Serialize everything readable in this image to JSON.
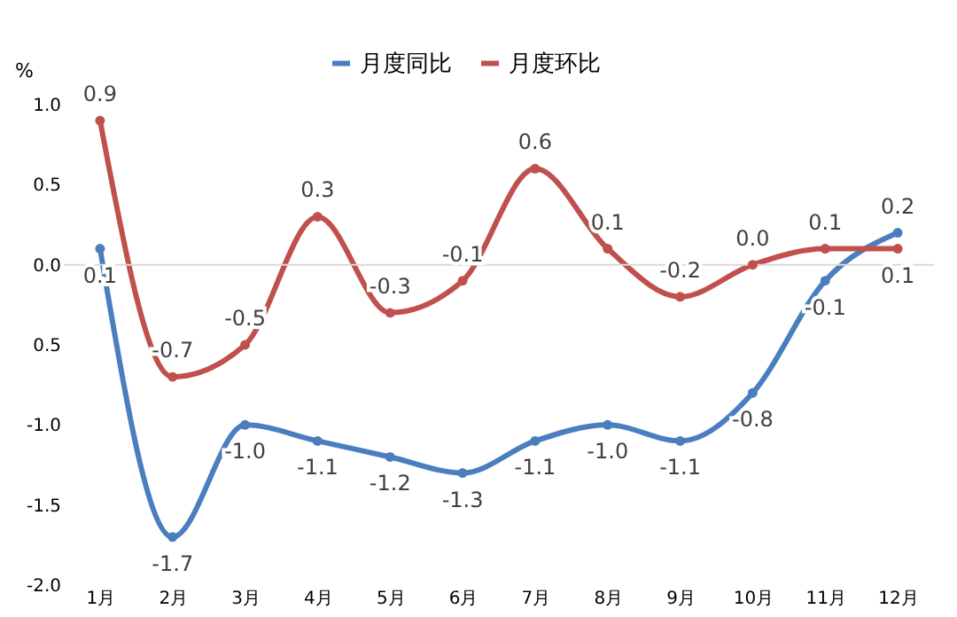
{
  "chart_data": {
    "type": "line",
    "ylabel": "%",
    "categories": [
      "1月",
      "2月",
      "3月",
      "4月",
      "5月",
      "6月",
      "7月",
      "8月",
      "9月",
      "10月",
      "11月",
      "12月"
    ],
    "series": [
      {
        "name": "月度同比",
        "color": "#4a7ebf",
        "values": [
          0.1,
          -1.7,
          -1.0,
          -1.1,
          -1.2,
          -1.3,
          -1.1,
          -1.0,
          -1.1,
          -0.8,
          -0.1,
          0.2
        ],
        "value_labels": [
          "0.1",
          "-1.7",
          "-1.0",
          "-1.1",
          "-1.2",
          "-1.3",
          "-1.1",
          "-1.0",
          "-1.1",
          "-0.8",
          "-0.1",
          "0.2"
        ]
      },
      {
        "name": "月度环比",
        "color": "#c0504d",
        "values": [
          0.9,
          -0.7,
          -0.5,
          0.3,
          -0.3,
          -0.1,
          0.6,
          0.1,
          -0.2,
          0.0,
          0.1,
          0.1
        ],
        "value_labels": [
          "0.9",
          "-0.7",
          "-0.5",
          "0.3",
          "-0.3",
          "-0.1",
          "0.6",
          "0.1",
          "-0.2",
          "0.0",
          "0.1",
          "0.1"
        ]
      }
    ],
    "ylim": [
      -2.0,
      1.0
    ],
    "yticks": [
      {
        "value": -2.0,
        "label": "-2.0"
      },
      {
        "value": -1.5,
        "label": "-1.5"
      },
      {
        "value": -1.0,
        "label": "-1.0"
      },
      {
        "value": -0.5,
        "label": "0.5"
      },
      {
        "value": 0.0,
        "label": "0.0"
      },
      {
        "value": 0.5,
        "label": "0.5"
      },
      {
        "value": 1.0,
        "label": "1.0"
      }
    ],
    "ref_lines": [
      {
        "axis": "y",
        "value": 0.0,
        "label": null,
        "color": "#d9d9d9"
      }
    ],
    "grid": false,
    "legend": "top",
    "marker": "circle",
    "line_style": "solid"
  }
}
